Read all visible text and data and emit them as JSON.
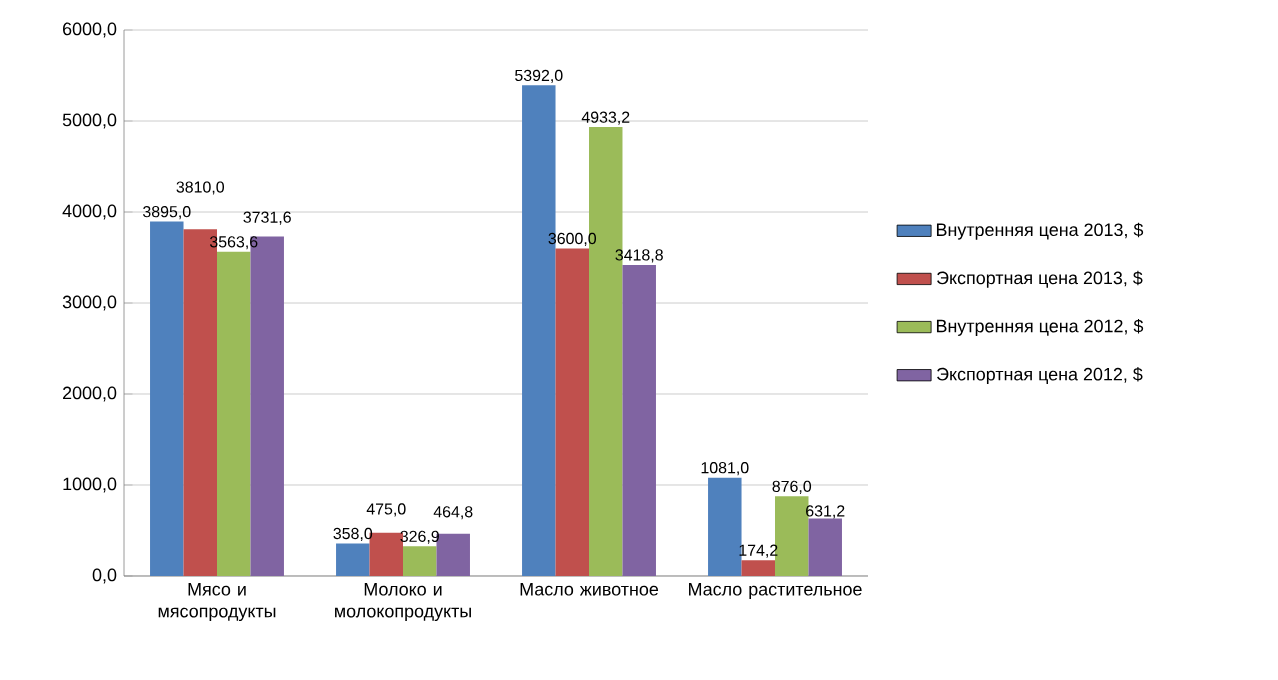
{
  "chart_data": {
    "type": "bar",
    "categories": [
      "Мясо и мясопродукты",
      "Молоко и молокопродукты",
      "Масло животное",
      "Масло растительное"
    ],
    "series": [
      {
        "name": "Внутренняя цена 2013, $",
        "color": "#4f81bd",
        "values": [
          3895.0,
          358.0,
          5392.0,
          1081.0
        ],
        "value_labels": [
          "3895,0",
          "358,0",
          "5392,0",
          "1081,0"
        ]
      },
      {
        "name": "Экспортная цена 2013, $",
        "color": "#c0504d",
        "values": [
          3810.0,
          475.0,
          3600.0,
          174.2
        ],
        "value_labels": [
          "3810,0",
          "475,0",
          "3600,0",
          "174,2"
        ]
      },
      {
        "name": "Внутренняя цена 2012, $",
        "color": "#9bbb59",
        "values": [
          3563.6,
          326.9,
          4933.2,
          876.0
        ],
        "value_labels": [
          "3563,6",
          "326,9",
          "4933,2",
          "876,0"
        ]
      },
      {
        "name": "Экспортная цена 2012, $",
        "color": "#8064a2",
        "values": [
          3731.6,
          464.8,
          3418.8,
          631.2
        ],
        "value_labels": [
          "3731,6",
          "464,8",
          "3418,8",
          "631,2"
        ]
      }
    ],
    "ylim": [
      0,
      6000
    ],
    "yticks": [
      {
        "value": 0,
        "label": "0,0"
      },
      {
        "value": 1000,
        "label": "1000,0"
      },
      {
        "value": 2000,
        "label": "2000,0"
      },
      {
        "value": 3000,
        "label": "3000,0"
      },
      {
        "value": 4000,
        "label": "4000,0"
      },
      {
        "value": 5000,
        "label": "5000,0"
      },
      {
        "value": 6000,
        "label": "6000,0"
      }
    ],
    "grid": "y",
    "legend": "right"
  }
}
